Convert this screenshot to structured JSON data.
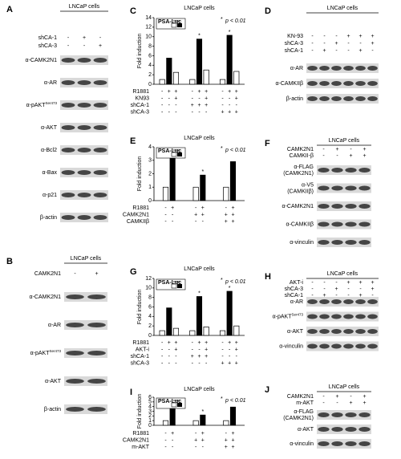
{
  "panels": [
    {
      "label": "A",
      "title": "LNCaP cells",
      "conditions": [
        {
          "name": "shCA-1",
          "signs": [
            "-",
            "+",
            "-"
          ]
        },
        {
          "name": "shCA-3",
          "signs": [
            "-",
            "-",
            "+"
          ]
        }
      ],
      "blots": [
        {
          "name": "α-CAMK2N1"
        },
        {
          "name": "α-AR"
        },
        {
          "name": "α-pAKT",
          "sup": "Ser473"
        },
        {
          "name": "α-AKT"
        },
        {
          "name": "α-Bcl2"
        },
        {
          "name": "α-Bax"
        },
        {
          "name": "α-p21"
        },
        {
          "name": "β-actin"
        }
      ]
    },
    {
      "label": "B",
      "title": "LNCaP cells",
      "conditions": [
        {
          "name": "CAMK2N1",
          "signs": [
            "-",
            "+"
          ]
        }
      ],
      "blots": [
        {
          "name": "α-CAMK2N1"
        },
        {
          "name": "α-AR"
        },
        {
          "name": "α-pAKT",
          "sup": "Ser473"
        },
        {
          "name": "α-AKT"
        },
        {
          "name": "β-actin"
        }
      ]
    },
    {
      "label": "C",
      "title": "LNCaP cells",
      "legend": "PSA-Luc",
      "y_label": "Fold induction",
      "ylim": [
        0,
        14
      ],
      "yticks": [
        0,
        2,
        4,
        6,
        8,
        10,
        12,
        14
      ],
      "values": [
        1,
        5.5,
        2.5,
        1,
        9.5,
        3,
        1,
        10.3,
        2.7
      ],
      "colors": [
        "#ffffff",
        "#000000",
        "#ffffff",
        "#ffffff",
        "#000000",
        "#ffffff",
        "#ffffff",
        "#000000",
        "#ffffff"
      ],
      "stars": [
        null,
        null,
        null,
        null,
        "*",
        null,
        null,
        "*",
        null
      ],
      "annotation_star": "*",
      "annotation": "p < 0.01",
      "conditions": [
        {
          "name": "R1881",
          "signs": [
            "-",
            "+",
            "+",
            "-",
            "+",
            "+",
            "-",
            "+",
            "+"
          ]
        },
        {
          "name": "KN93",
          "signs": [
            "-",
            "-",
            "+",
            "-",
            "-",
            "+",
            "-",
            "-",
            "+"
          ]
        },
        {
          "name": "shCA-1",
          "signs": [
            "-",
            "-",
            "-",
            "+",
            "+",
            "+",
            "-",
            "-",
            "-"
          ]
        },
        {
          "name": "shCA-3",
          "signs": [
            "-",
            "-",
            "-",
            "-",
            "-",
            "-",
            "+",
            "+",
            "+"
          ]
        }
      ]
    },
    {
      "label": "D",
      "title": "LNCaP cells",
      "conditions": [
        {
          "name": "KN-93",
          "signs": [
            "-",
            "-",
            "-",
            "+",
            "+",
            "+"
          ]
        },
        {
          "name": "shCA-3",
          "signs": [
            "-",
            "-",
            "+",
            "-",
            "-",
            "+"
          ]
        },
        {
          "name": "shCA-1",
          "signs": [
            "-",
            "+",
            "-",
            "-",
            "+",
            "-"
          ]
        }
      ],
      "blots": [
        {
          "name": "α-AR"
        },
        {
          "name": "α-CAMKIIβ"
        },
        {
          "name": "β-actin"
        }
      ]
    },
    {
      "label": "E",
      "title": "LNCaP cells",
      "legend": "PSA-Luc",
      "y_label": "Fold induction",
      "ylim": [
        0,
        4
      ],
      "yticks": [
        0,
        1,
        2,
        3,
        4
      ],
      "values": [
        1,
        3.2,
        1,
        1.9,
        1,
        2.9
      ],
      "colors": [
        "#ffffff",
        "#000000",
        "#ffffff",
        "#000000",
        "#ffffff",
        "#000000"
      ],
      "stars": [
        null,
        null,
        null,
        "*",
        null,
        null
      ],
      "annotation_star": "*",
      "annotation": "p < 0.01",
      "conditions": [
        {
          "name": "R1881",
          "signs": [
            "-",
            "+",
            "-",
            "+",
            "-",
            "+"
          ]
        },
        {
          "name": "CAMK2N1",
          "signs": [
            "-",
            "-",
            "+",
            "+",
            "+",
            "+"
          ]
        },
        {
          "name": "CAMKIIβ",
          "signs": [
            "-",
            "-",
            "-",
            "-",
            "+",
            "+"
          ]
        }
      ]
    },
    {
      "label": "F",
      "title": "LNCaP cells",
      "conditions": [
        {
          "name": "CAMK2N1",
          "signs": [
            "-",
            "+",
            "-",
            "+"
          ]
        },
        {
          "name": "CAMKII-β",
          "signs": [
            "-",
            "-",
            "+",
            "+"
          ]
        }
      ],
      "blots": [
        {
          "name": [
            "α-FLAG",
            "(CAMK2N1)"
          ]
        },
        {
          "name": [
            "α-V5",
            "(CAMKIIβ)"
          ]
        },
        {
          "name": "α-CAMK2N1"
        },
        {
          "name": "α-CAMKIIβ"
        },
        {
          "name": "α-vinculin"
        }
      ]
    },
    {
      "label": "G",
      "title": "LNCaP cells",
      "legend": "PSA-Luc",
      "y_label": "Fold induction",
      "ylim": [
        0,
        12
      ],
      "yticks": [
        0,
        2,
        4,
        6,
        8,
        10,
        12
      ],
      "values": [
        1,
        5.8,
        1.5,
        1,
        8.2,
        1.8,
        1,
        9.3,
        2
      ],
      "colors": [
        "#ffffff",
        "#000000",
        "#ffffff",
        "#ffffff",
        "#000000",
        "#ffffff",
        "#ffffff",
        "#000000",
        "#ffffff"
      ],
      "stars": [
        null,
        null,
        null,
        null,
        "*",
        null,
        null,
        "*",
        null
      ],
      "annotation_star": "*",
      "annotation": "p < 0.01",
      "conditions": [
        {
          "name": "R1881",
          "signs": [
            "-",
            "+",
            "+",
            "-",
            "+",
            "+",
            "-",
            "+",
            "+"
          ]
        },
        {
          "name": "AKT-i",
          "signs": [
            "-",
            "-",
            "+",
            "-",
            "-",
            "+",
            "-",
            "-",
            "+"
          ]
        },
        {
          "name": "shCA-1",
          "signs": [
            "-",
            "-",
            "-",
            "+",
            "+",
            "+",
            "-",
            "-",
            "-"
          ]
        },
        {
          "name": "shCA-3",
          "signs": [
            "-",
            "-",
            "-",
            "-",
            "-",
            "-",
            "+",
            "+",
            "+"
          ]
        }
      ]
    },
    {
      "label": "H",
      "title": "LNCaP cells",
      "conditions": [
        {
          "name": "AKT-i",
          "signs": [
            "-",
            "-",
            "-",
            "+",
            "+",
            "+"
          ]
        },
        {
          "name": "shCA-3",
          "signs": [
            "-",
            "-",
            "+",
            "-",
            "-",
            "+"
          ]
        },
        {
          "name": "shCA-1",
          "signs": [
            "-",
            "+",
            "-",
            "-",
            "+",
            "-"
          ]
        }
      ],
      "blots": [
        {
          "name": "α-AR"
        },
        {
          "name": "α-pAKT",
          "sup": "Ser473"
        },
        {
          "name": "α-AKT"
        },
        {
          "name": "α-vinculin"
        }
      ]
    },
    {
      "label": "I",
      "title": "LNCaP cells",
      "legend": "PSA-Luc",
      "y_label": "Fold induction",
      "ylim": [
        0,
        6
      ],
      "yticks": [
        0,
        1,
        2,
        3,
        4,
        5,
        6
      ],
      "values": [
        1,
        4.7,
        1,
        2.2,
        1,
        3.9
      ],
      "colors": [
        "#ffffff",
        "#000000",
        "#ffffff",
        "#000000",
        "#ffffff",
        "#000000"
      ],
      "stars": [
        null,
        null,
        null,
        "*",
        null,
        null
      ],
      "annotation_star": "*",
      "annotation": "p < 0.01",
      "conditions": [
        {
          "name": "R1881",
          "signs": [
            "-",
            "+",
            "-",
            "+",
            "-",
            "+"
          ]
        },
        {
          "name": "CAMK2N1",
          "signs": [
            "-",
            "-",
            "+",
            "+",
            "+",
            "+"
          ]
        },
        {
          "name": "m-AKT",
          "signs": [
            "-",
            "-",
            "-",
            "-",
            "+",
            "+"
          ]
        }
      ]
    },
    {
      "label": "J",
      "title": "LNCaP cells",
      "conditions": [
        {
          "name": "CAMK2N1",
          "signs": [
            "-",
            "+",
            "-",
            "+"
          ]
        },
        {
          "name": "m-AKT",
          "signs": [
            "-",
            "-",
            "+",
            "+"
          ]
        }
      ],
      "blots": [
        {
          "name": [
            "α-FLAG",
            "(CAMK2N1)"
          ]
        },
        {
          "name": "α-AKT"
        },
        {
          "name": "α-vinculin"
        }
      ]
    }
  ]
}
